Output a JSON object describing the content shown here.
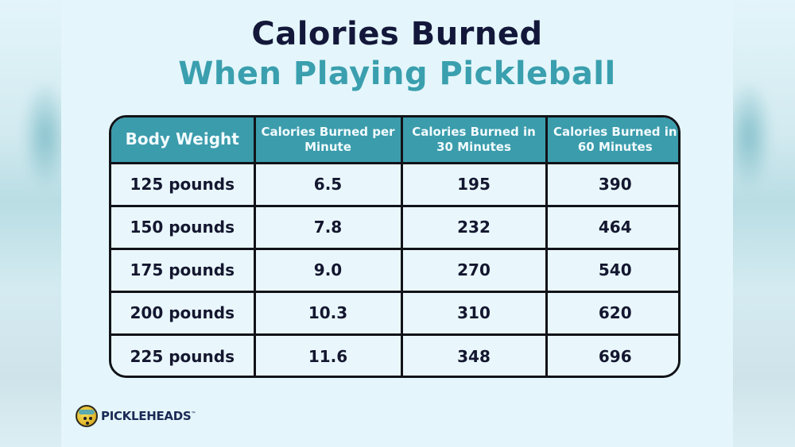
{
  "title": {
    "line1": "Calories Burned",
    "line2": "When Playing Pickleball"
  },
  "colors": {
    "title_dark": "#13183a",
    "title_teal": "#3a9fae",
    "header_bg": "#3b9cac",
    "header_text": "#f2fbfd",
    "cell_bg": "#e9f7fc",
    "border": "#111318",
    "page_bg": "#e4f6fb"
  },
  "table": {
    "headers": [
      "Body Weight",
      "Calories Burned per Minute",
      "Calories Burned in 30 Minutes",
      "Calories Burned in 60 Minutes"
    ],
    "rows": [
      [
        "125 pounds",
        "6.5",
        "195",
        "390"
      ],
      [
        "150 pounds",
        "7.8",
        "232",
        "464"
      ],
      [
        "175 pounds",
        "9.0",
        "270",
        "540"
      ],
      [
        "200 pounds",
        "10.3",
        "310",
        "620"
      ],
      [
        "225 pounds",
        "11.6",
        "348",
        "696"
      ]
    ]
  },
  "logo": {
    "icon": "pickleball-mascot-icon",
    "text": "PICKLEHEADS",
    "tm": "™"
  },
  "chart_data": {
    "type": "table",
    "title": "Calories Burned When Playing Pickleball",
    "columns": [
      "Body Weight",
      "Calories Burned per Minute",
      "Calories Burned in 30 Minutes",
      "Calories Burned in 60 Minutes"
    ],
    "categories": [
      "125 pounds",
      "150 pounds",
      "175 pounds",
      "200 pounds",
      "225 pounds"
    ],
    "series": [
      {
        "name": "Calories Burned per Minute",
        "values": [
          6.5,
          7.8,
          9.0,
          10.3,
          11.6
        ]
      },
      {
        "name": "Calories Burned in 30 Minutes",
        "values": [
          195,
          232,
          270,
          310,
          348
        ]
      },
      {
        "name": "Calories Burned in 60 Minutes",
        "values": [
          390,
          464,
          540,
          620,
          696
        ]
      }
    ]
  }
}
